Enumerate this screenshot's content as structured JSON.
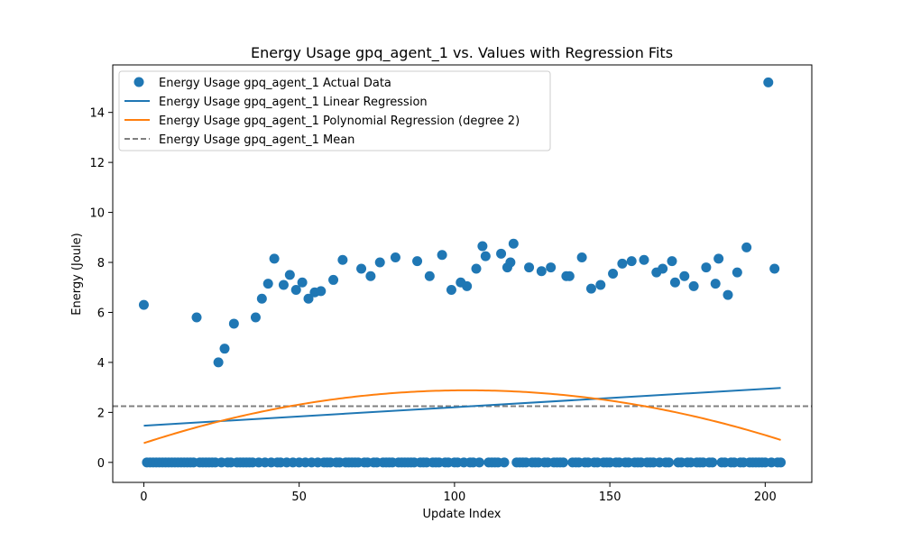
{
  "colors": {
    "actual": "#1f77b4",
    "linear": "#1f77b4",
    "poly": "#ff7f0e",
    "mean": "#808080"
  },
  "chart_data": {
    "type": "scatter",
    "title": "Energy Usage gpq_agent_1 vs. Values with Regression Fits",
    "xlabel": "Update Index",
    "ylabel": "Energy (Joule)",
    "xlim": [
      -10,
      215
    ],
    "ylim": [
      -0.8,
      15.9
    ],
    "xticks": [
      0,
      50,
      100,
      150,
      200
    ],
    "yticks": [
      0,
      2,
      4,
      6,
      8,
      10,
      12,
      14
    ],
    "grid": false,
    "legend_position": "upper-left",
    "legend": [
      "Energy Usage gpq_agent_1 Actual Data",
      "Energy Usage gpq_agent_1 Linear Regression",
      "Energy Usage gpq_agent_1 Polynomial Regression (degree 2)",
      "Energy Usage gpq_agent_1 Mean"
    ],
    "actual_points": [
      [
        0,
        6.3
      ],
      [
        17,
        5.8
      ],
      [
        24,
        4.0
      ],
      [
        26,
        4.55
      ],
      [
        29,
        5.55
      ],
      [
        36,
        5.8
      ],
      [
        38,
        6.55
      ],
      [
        40,
        7.15
      ],
      [
        42,
        8.15
      ],
      [
        45,
        7.1
      ],
      [
        47,
        7.5
      ],
      [
        49,
        6.9
      ],
      [
        51,
        7.2
      ],
      [
        53,
        6.55
      ],
      [
        55,
        6.8
      ],
      [
        57,
        6.85
      ],
      [
        61,
        7.3
      ],
      [
        64,
        8.1
      ],
      [
        70,
        7.75
      ],
      [
        73,
        7.45
      ],
      [
        76,
        8.0
      ],
      [
        81,
        8.2
      ],
      [
        88,
        8.05
      ],
      [
        92,
        7.45
      ],
      [
        96,
        8.3
      ],
      [
        99,
        6.9
      ],
      [
        102,
        7.2
      ],
      [
        104,
        7.05
      ],
      [
        107,
        7.75
      ],
      [
        109,
        8.65
      ],
      [
        110,
        8.25
      ],
      [
        115,
        8.35
      ],
      [
        117,
        7.8
      ],
      [
        118,
        8.0
      ],
      [
        119,
        8.75
      ],
      [
        124,
        7.8
      ],
      [
        128,
        7.65
      ],
      [
        131,
        7.8
      ],
      [
        136,
        7.45
      ],
      [
        137,
        7.45
      ],
      [
        141,
        8.2
      ],
      [
        144,
        6.95
      ],
      [
        147,
        7.1
      ],
      [
        151,
        7.55
      ],
      [
        154,
        7.95
      ],
      [
        157,
        8.05
      ],
      [
        161,
        8.1
      ],
      [
        165,
        7.6
      ],
      [
        167,
        7.75
      ],
      [
        170,
        8.05
      ],
      [
        171,
        7.2
      ],
      [
        174,
        7.45
      ],
      [
        177,
        7.05
      ],
      [
        181,
        7.8
      ],
      [
        184,
        7.15
      ],
      [
        185,
        8.15
      ],
      [
        188,
        6.7
      ],
      [
        191,
        7.6
      ],
      [
        194,
        8.6
      ],
      [
        201,
        15.2
      ],
      [
        203,
        7.75
      ],
      [
        1,
        0
      ],
      [
        2,
        0
      ],
      [
        3,
        0
      ],
      [
        4,
        0
      ],
      [
        5,
        0
      ],
      [
        6,
        0
      ],
      [
        7,
        0
      ],
      [
        8,
        0
      ],
      [
        9,
        0
      ],
      [
        10,
        0
      ],
      [
        11,
        0
      ],
      [
        12,
        0
      ],
      [
        13,
        0
      ],
      [
        14,
        0
      ],
      [
        15,
        0
      ],
      [
        16,
        0
      ],
      [
        18,
        0
      ],
      [
        19,
        0
      ],
      [
        20,
        0
      ],
      [
        21,
        0
      ],
      [
        22,
        0
      ],
      [
        23,
        0
      ],
      [
        25,
        0
      ],
      [
        27,
        0
      ],
      [
        28,
        0
      ],
      [
        30,
        0
      ],
      [
        31,
        0
      ],
      [
        32,
        0
      ],
      [
        33,
        0
      ],
      [
        34,
        0
      ],
      [
        35,
        0
      ],
      [
        37,
        0
      ],
      [
        39,
        0
      ],
      [
        41,
        0
      ],
      [
        43,
        0
      ],
      [
        44,
        0
      ],
      [
        46,
        0
      ],
      [
        48,
        0
      ],
      [
        50,
        0
      ],
      [
        52,
        0
      ],
      [
        54,
        0
      ],
      [
        56,
        0
      ],
      [
        58,
        0
      ],
      [
        59,
        0
      ],
      [
        60,
        0
      ],
      [
        62,
        0
      ],
      [
        63,
        0
      ],
      [
        65,
        0
      ],
      [
        66,
        0
      ],
      [
        67,
        0
      ],
      [
        68,
        0
      ],
      [
        69,
        0
      ],
      [
        71,
        0
      ],
      [
        72,
        0
      ],
      [
        74,
        0
      ],
      [
        75,
        0
      ],
      [
        77,
        0
      ],
      [
        78,
        0
      ],
      [
        79,
        0
      ],
      [
        80,
        0
      ],
      [
        82,
        0
      ],
      [
        83,
        0
      ],
      [
        84,
        0
      ],
      [
        85,
        0
      ],
      [
        86,
        0
      ],
      [
        87,
        0
      ],
      [
        89,
        0
      ],
      [
        90,
        0
      ],
      [
        91,
        0
      ],
      [
        93,
        0
      ],
      [
        94,
        0
      ],
      [
        95,
        0
      ],
      [
        97,
        0
      ],
      [
        98,
        0
      ],
      [
        100,
        0
      ],
      [
        101,
        0
      ],
      [
        103,
        0
      ],
      [
        105,
        0
      ],
      [
        106,
        0
      ],
      [
        108,
        0
      ],
      [
        111,
        0
      ],
      [
        112,
        0
      ],
      [
        113,
        0
      ],
      [
        114,
        0
      ],
      [
        116,
        0
      ],
      [
        120,
        0
      ],
      [
        121,
        0
      ],
      [
        122,
        0
      ],
      [
        123,
        0
      ],
      [
        125,
        0
      ],
      [
        126,
        0
      ],
      [
        127,
        0
      ],
      [
        129,
        0
      ],
      [
        130,
        0
      ],
      [
        132,
        0
      ],
      [
        133,
        0
      ],
      [
        134,
        0
      ],
      [
        135,
        0
      ],
      [
        138,
        0
      ],
      [
        139,
        0
      ],
      [
        140,
        0
      ],
      [
        142,
        0
      ],
      [
        143,
        0
      ],
      [
        145,
        0
      ],
      [
        146,
        0
      ],
      [
        148,
        0
      ],
      [
        149,
        0
      ],
      [
        150,
        0
      ],
      [
        152,
        0
      ],
      [
        153,
        0
      ],
      [
        155,
        0
      ],
      [
        156,
        0
      ],
      [
        158,
        0
      ],
      [
        159,
        0
      ],
      [
        160,
        0
      ],
      [
        162,
        0
      ],
      [
        163,
        0
      ],
      [
        164,
        0
      ],
      [
        166,
        0
      ],
      [
        168,
        0
      ],
      [
        169,
        0
      ],
      [
        172,
        0
      ],
      [
        173,
        0
      ],
      [
        175,
        0
      ],
      [
        176,
        0
      ],
      [
        178,
        0
      ],
      [
        179,
        0
      ],
      [
        180,
        0
      ],
      [
        182,
        0
      ],
      [
        183,
        0
      ],
      [
        186,
        0
      ],
      [
        187,
        0
      ],
      [
        189,
        0
      ],
      [
        190,
        0
      ],
      [
        192,
        0
      ],
      [
        193,
        0
      ],
      [
        195,
        0
      ],
      [
        196,
        0
      ],
      [
        197,
        0
      ],
      [
        198,
        0
      ],
      [
        199,
        0
      ],
      [
        200,
        0
      ],
      [
        202,
        0
      ],
      [
        204,
        0
      ],
      [
        205,
        0
      ]
    ],
    "linear_fit": {
      "x": [
        0,
        205
      ],
      "y": [
        1.47,
        2.98
      ]
    },
    "poly_fit": {
      "a": -0.000195,
      "b": 0.0406,
      "c": 0.77,
      "x_range": [
        0,
        205
      ]
    },
    "mean": 2.25
  }
}
